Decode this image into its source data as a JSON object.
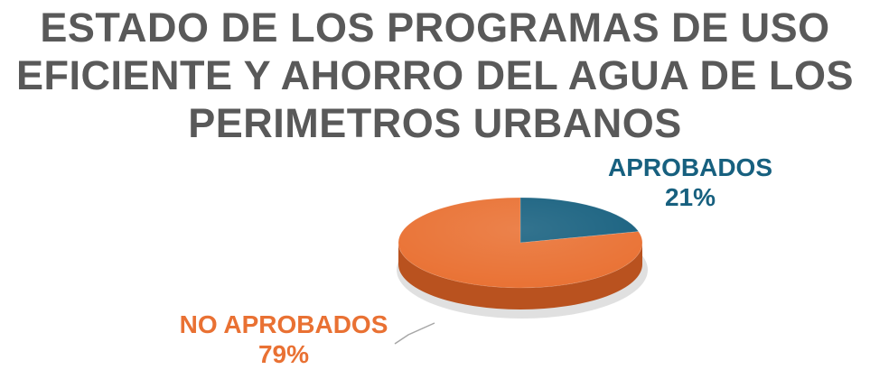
{
  "chart_data": {
    "type": "pie",
    "style": "3d",
    "title_lines": [
      "ESTADO  DE LOS PROGRAMAS DE USO",
      "EFICIENTE Y AHORRO DEL AGUA DE LOS",
      "PERIMETROS URBANOS"
    ],
    "legend": "none",
    "slices": [
      {
        "label": "APROBADOS",
        "value": 21,
        "percent_label": "21%",
        "color": "#17607F",
        "side_color": "#0F4A63"
      },
      {
        "label": "NO APROBADOS",
        "value": 79,
        "percent_label": "79%",
        "color": "#E97133",
        "side_color": "#B9521F"
      }
    ]
  }
}
